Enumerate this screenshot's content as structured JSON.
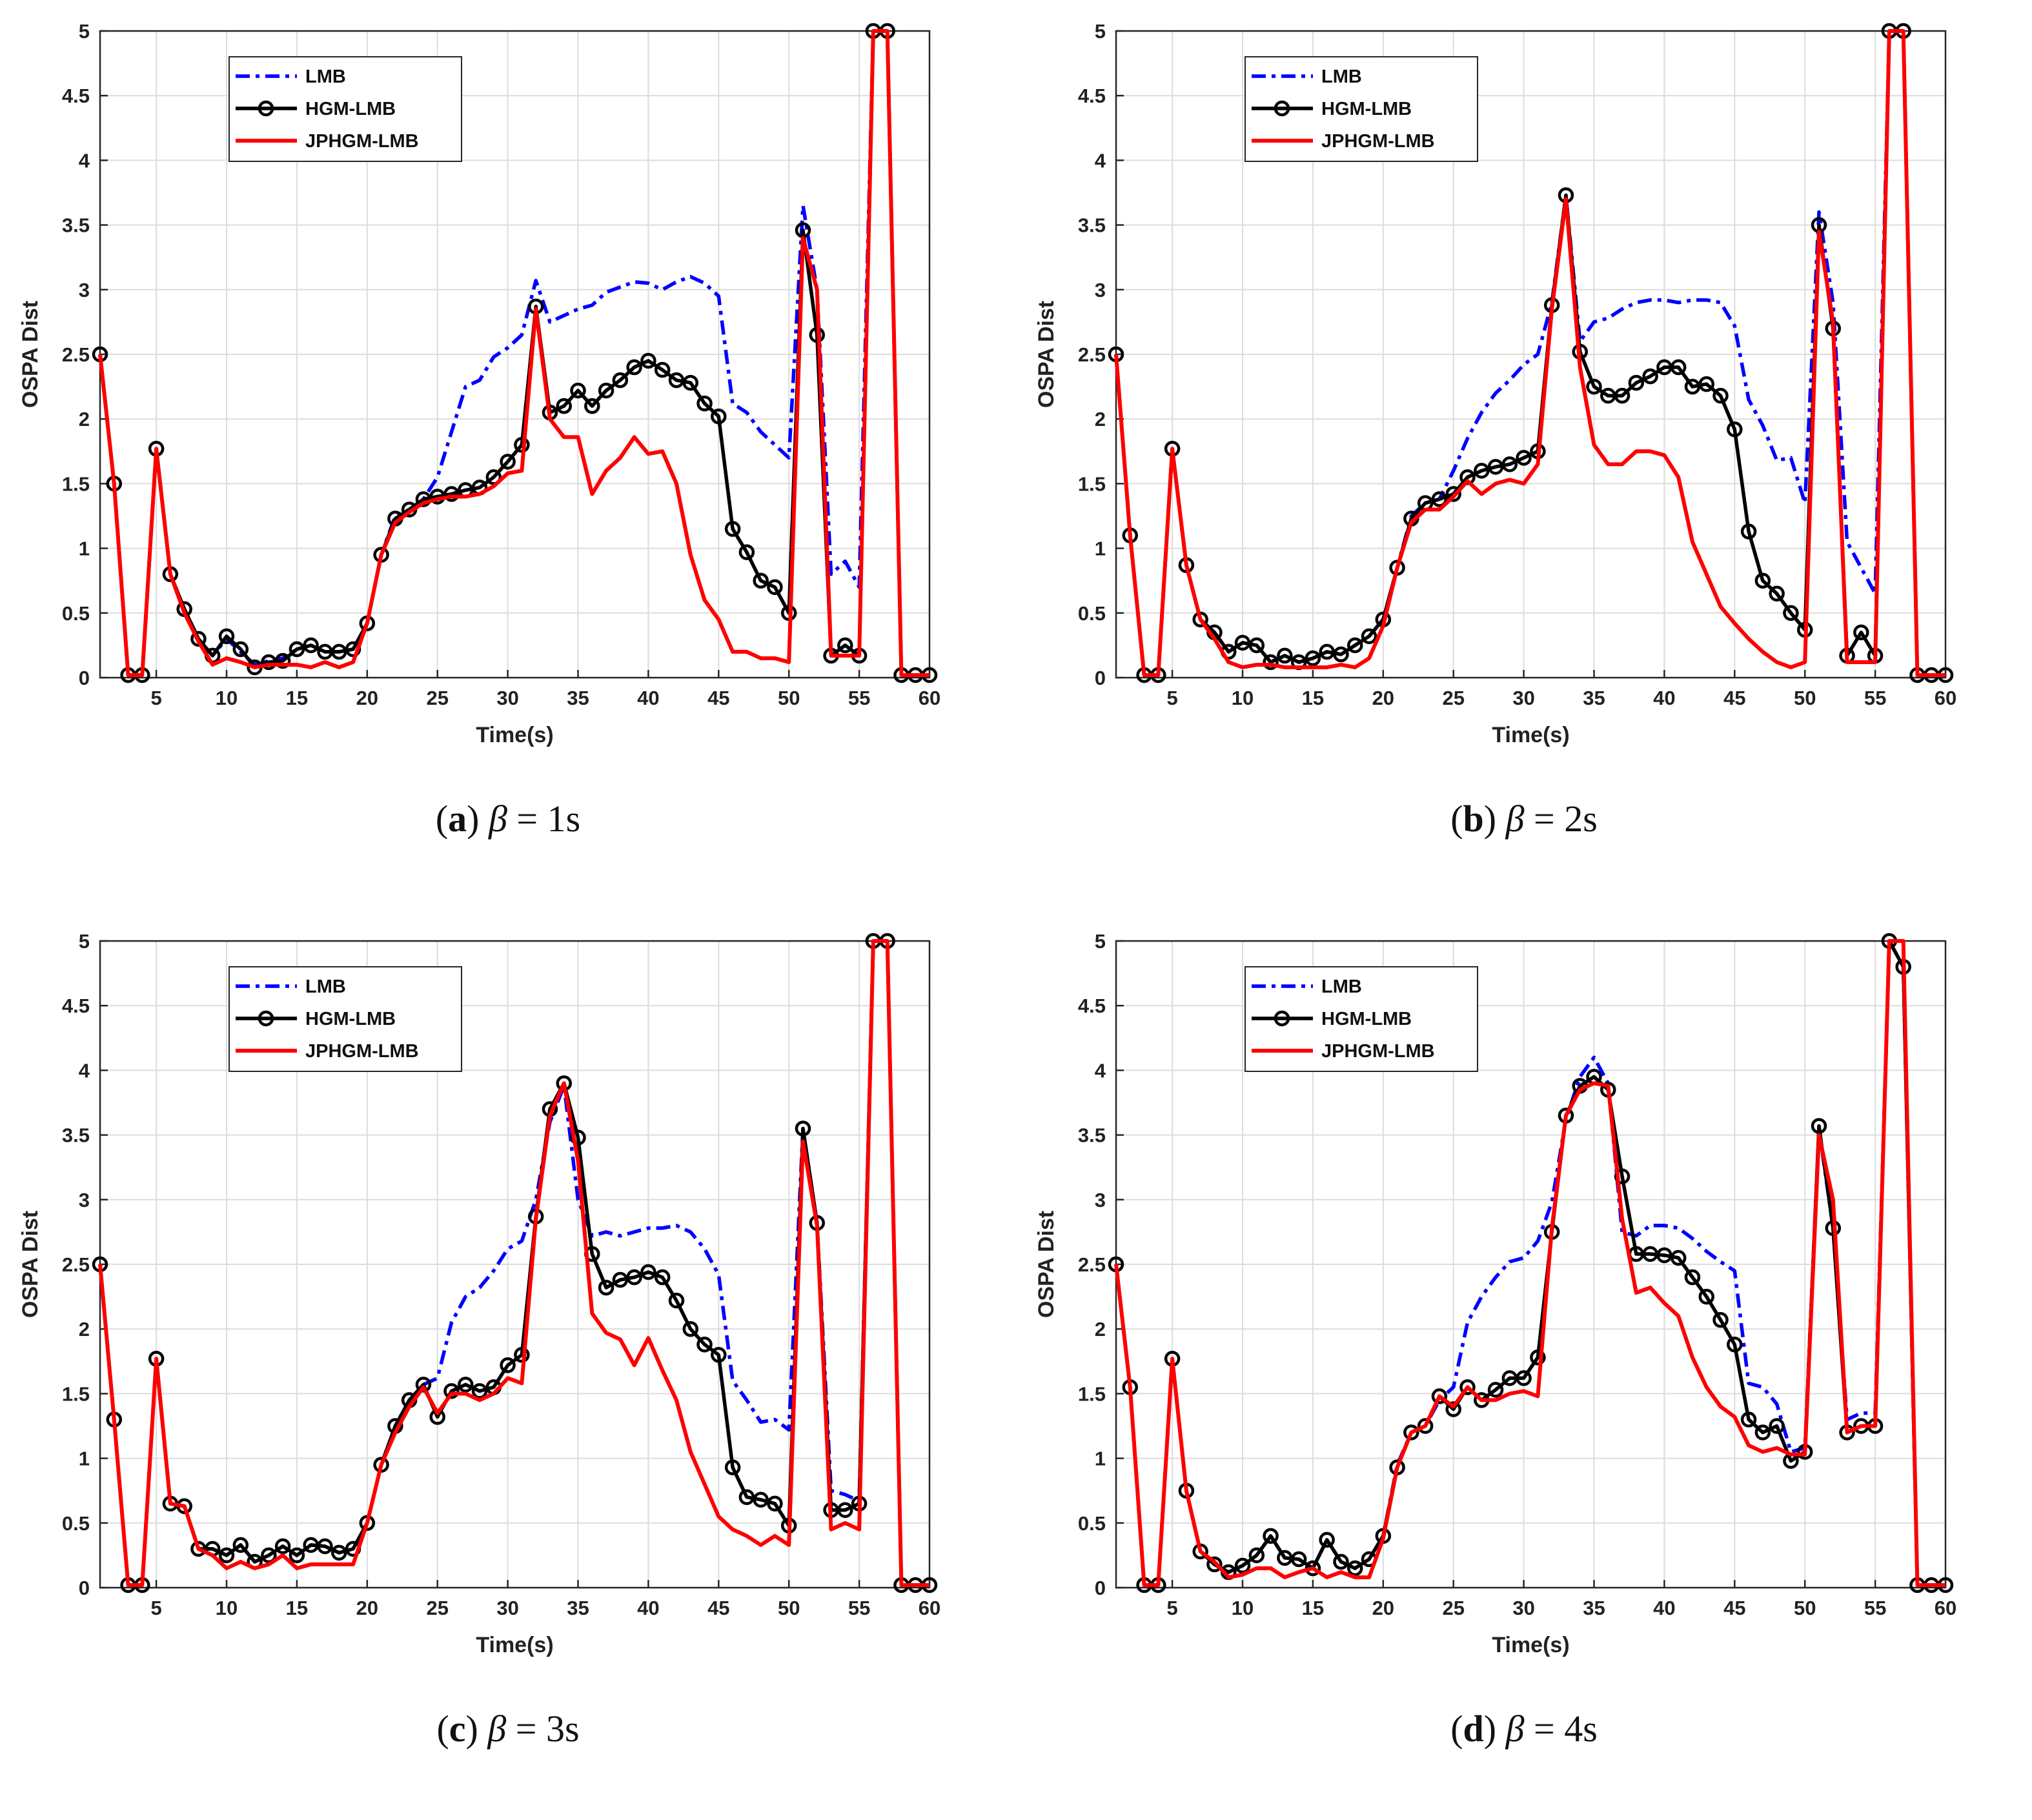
{
  "figure": {
    "legend": {
      "series_names": [
        "LMB",
        "HGM-LMB",
        "JPHGM-LMB"
      ]
    },
    "colors": {
      "LMB": "#0000ff",
      "HGM-LMB": "#000000",
      "JPHGM-LMB": "#ff0000"
    }
  },
  "chart_data": [
    {
      "type": "line",
      "caption": {
        "letter": "a",
        "beta": "β",
        "eq": "=",
        "value": "1s"
      },
      "xlabel": "Time(s)",
      "ylabel": "OSPA Dist",
      "xlim": [
        1,
        60
      ],
      "ylim": [
        0,
        5
      ],
      "xticks": [
        5,
        10,
        15,
        20,
        25,
        30,
        35,
        40,
        45,
        50,
        55,
        60
      ],
      "yticks": [
        0,
        0.5,
        1,
        1.5,
        2,
        2.5,
        3,
        3.5,
        4,
        4.5,
        5
      ],
      "grid": true,
      "legend_position": "top-left",
      "x": [
        1,
        2,
        3,
        4,
        5,
        6,
        7,
        8,
        9,
        10,
        11,
        12,
        13,
        14,
        15,
        16,
        17,
        18,
        19,
        20,
        21,
        22,
        23,
        24,
        25,
        26,
        27,
        28,
        29,
        30,
        31,
        32,
        33,
        34,
        35,
        36,
        37,
        38,
        39,
        40,
        41,
        42,
        43,
        44,
        45,
        46,
        47,
        48,
        49,
        50,
        51,
        52,
        53,
        54,
        55,
        56,
        57,
        58,
        59,
        60
      ],
      "series": [
        {
          "name": "LMB",
          "values": [
            2.5,
            1.5,
            0.02,
            0.02,
            1.77,
            0.8,
            0.53,
            0.3,
            0.17,
            0.3,
            0.2,
            0.1,
            0.13,
            0.15,
            0.22,
            0.25,
            0.2,
            0.2,
            0.22,
            0.42,
            0.95,
            1.25,
            1.3,
            1.38,
            1.55,
            1.9,
            2.25,
            2.3,
            2.48,
            2.55,
            2.65,
            3.07,
            2.75,
            2.8,
            2.85,
            2.88,
            2.98,
            3.02,
            3.06,
            3.05,
            3.0,
            3.06,
            3.1,
            3.05,
            2.95,
            2.12,
            2.05,
            1.9,
            1.8,
            1.7,
            3.65,
            3.0,
            0.8,
            0.9,
            0.7,
            5.0,
            5.0,
            0.02,
            0.02,
            0.02
          ]
        },
        {
          "name": "HGM-LMB",
          "values": [
            2.5,
            1.5,
            0.02,
            0.02,
            1.77,
            0.8,
            0.53,
            0.3,
            0.17,
            0.32,
            0.22,
            0.08,
            0.12,
            0.13,
            0.22,
            0.25,
            0.2,
            0.2,
            0.22,
            0.42,
            0.95,
            1.23,
            1.3,
            1.38,
            1.4,
            1.42,
            1.45,
            1.47,
            1.55,
            1.67,
            1.8,
            2.87,
            2.05,
            2.1,
            2.22,
            2.1,
            2.22,
            2.3,
            2.4,
            2.45,
            2.38,
            2.3,
            2.28,
            2.12,
            2.02,
            1.15,
            0.97,
            0.75,
            0.7,
            0.5,
            3.46,
            2.65,
            0.17,
            0.25,
            0.17,
            5.0,
            5.0,
            0.02,
            0.02,
            0.02
          ]
        },
        {
          "name": "JPHGM-LMB",
          "values": [
            2.5,
            1.5,
            0.02,
            0.02,
            1.77,
            0.8,
            0.5,
            0.28,
            0.1,
            0.15,
            0.12,
            0.08,
            0.1,
            0.1,
            0.1,
            0.08,
            0.12,
            0.08,
            0.12,
            0.42,
            0.95,
            1.2,
            1.28,
            1.35,
            1.38,
            1.4,
            1.4,
            1.42,
            1.48,
            1.58,
            1.6,
            2.85,
            2.0,
            1.86,
            1.86,
            1.42,
            1.6,
            1.7,
            1.86,
            1.73,
            1.75,
            1.5,
            0.95,
            0.6,
            0.45,
            0.2,
            0.2,
            0.15,
            0.15,
            0.12,
            3.4,
            3.0,
            0.17,
            0.17,
            0.17,
            5.0,
            5.0,
            0.02,
            0.02,
            0.02
          ]
        }
      ]
    },
    {
      "type": "line",
      "caption": {
        "letter": "b",
        "beta": "β",
        "eq": "=",
        "value": "2s"
      },
      "xlabel": "Time(s)",
      "ylabel": "OSPA Dist",
      "xlim": [
        1,
        60
      ],
      "ylim": [
        0,
        5
      ],
      "xticks": [
        5,
        10,
        15,
        20,
        25,
        30,
        35,
        40,
        45,
        50,
        55,
        60
      ],
      "yticks": [
        0,
        0.5,
        1,
        1.5,
        2,
        2.5,
        3,
        3.5,
        4,
        4.5,
        5
      ],
      "grid": true,
      "legend_position": "top-left",
      "x": [
        1,
        2,
        3,
        4,
        5,
        6,
        7,
        8,
        9,
        10,
        11,
        12,
        13,
        14,
        15,
        16,
        17,
        18,
        19,
        20,
        21,
        22,
        23,
        24,
        25,
        26,
        27,
        28,
        29,
        30,
        31,
        32,
        33,
        34,
        35,
        36,
        37,
        38,
        39,
        40,
        41,
        42,
        43,
        44,
        45,
        46,
        47,
        48,
        49,
        50,
        51,
        52,
        53,
        54,
        55,
        56,
        57,
        58,
        59,
        60
      ],
      "series": [
        {
          "name": "LMB",
          "values": [
            2.5,
            1.1,
            0.02,
            0.02,
            1.77,
            0.87,
            0.45,
            0.35,
            0.2,
            0.27,
            0.25,
            0.12,
            0.17,
            0.12,
            0.15,
            0.2,
            0.18,
            0.25,
            0.32,
            0.45,
            0.85,
            1.25,
            1.35,
            1.38,
            1.6,
            1.85,
            2.05,
            2.2,
            2.3,
            2.42,
            2.5,
            2.9,
            3.73,
            2.6,
            2.75,
            2.78,
            2.85,
            2.9,
            2.92,
            2.92,
            2.9,
            2.92,
            2.92,
            2.9,
            2.72,
            2.15,
            1.95,
            1.68,
            1.7,
            1.35,
            3.6,
            2.9,
            1.05,
            0.85,
            0.65,
            5.0,
            5.0,
            0.02,
            0.02,
            0.02
          ]
        },
        {
          "name": "HGM-LMB",
          "values": [
            2.5,
            1.1,
            0.02,
            0.02,
            1.77,
            0.87,
            0.45,
            0.35,
            0.2,
            0.27,
            0.25,
            0.12,
            0.17,
            0.12,
            0.15,
            0.2,
            0.18,
            0.25,
            0.32,
            0.45,
            0.85,
            1.23,
            1.35,
            1.38,
            1.42,
            1.55,
            1.6,
            1.63,
            1.65,
            1.7,
            1.75,
            2.88,
            3.73,
            2.52,
            2.25,
            2.18,
            2.18,
            2.28,
            2.33,
            2.4,
            2.4,
            2.25,
            2.27,
            2.18,
            1.92,
            1.13,
            0.75,
            0.65,
            0.5,
            0.37,
            3.5,
            2.7,
            0.17,
            0.35,
            0.17,
            5.0,
            5.0,
            0.02,
            0.02,
            0.02
          ]
        },
        {
          "name": "JPHGM-LMB",
          "values": [
            2.5,
            1.1,
            0.02,
            0.02,
            1.77,
            0.87,
            0.45,
            0.3,
            0.12,
            0.08,
            0.1,
            0.1,
            0.08,
            0.08,
            0.08,
            0.08,
            0.1,
            0.08,
            0.15,
            0.4,
            0.85,
            1.2,
            1.3,
            1.3,
            1.4,
            1.52,
            1.42,
            1.5,
            1.53,
            1.5,
            1.65,
            2.85,
            3.7,
            2.4,
            1.8,
            1.65,
            1.65,
            1.75,
            1.75,
            1.72,
            1.55,
            1.05,
            0.8,
            0.55,
            0.42,
            0.3,
            0.2,
            0.12,
            0.08,
            0.12,
            3.45,
            2.75,
            0.12,
            0.12,
            0.12,
            5.0,
            5.0,
            0.02,
            0.02,
            0.02
          ]
        }
      ]
    },
    {
      "type": "line",
      "caption": {
        "letter": "c",
        "beta": "β",
        "eq": "=",
        "value": "3s"
      },
      "xlabel": "Time(s)",
      "ylabel": "OSPA Dist",
      "xlim": [
        1,
        60
      ],
      "ylim": [
        0,
        5
      ],
      "xticks": [
        5,
        10,
        15,
        20,
        25,
        30,
        35,
        40,
        45,
        50,
        55,
        60
      ],
      "yticks": [
        0,
        0.5,
        1,
        1.5,
        2,
        2.5,
        3,
        3.5,
        4,
        4.5,
        5
      ],
      "grid": true,
      "legend_position": "top-left",
      "x": [
        1,
        2,
        3,
        4,
        5,
        6,
        7,
        8,
        9,
        10,
        11,
        12,
        13,
        14,
        15,
        16,
        17,
        18,
        19,
        20,
        21,
        22,
        23,
        24,
        25,
        26,
        27,
        28,
        29,
        30,
        31,
        32,
        33,
        34,
        35,
        36,
        37,
        38,
        39,
        40,
        41,
        42,
        43,
        44,
        45,
        46,
        47,
        48,
        49,
        50,
        51,
        52,
        53,
        54,
        55,
        56,
        57,
        58,
        59,
        60
      ],
      "series": [
        {
          "name": "LMB",
          "values": [
            2.5,
            1.3,
            0.02,
            0.02,
            1.77,
            0.65,
            0.63,
            0.3,
            0.3,
            0.25,
            0.33,
            0.2,
            0.25,
            0.32,
            0.25,
            0.33,
            0.32,
            0.27,
            0.3,
            0.5,
            0.95,
            1.25,
            1.45,
            1.57,
            1.62,
            2.05,
            2.25,
            2.32,
            2.45,
            2.62,
            2.68,
            3.0,
            3.6,
            3.88,
            3.0,
            2.72,
            2.75,
            2.72,
            2.75,
            2.78,
            2.78,
            2.8,
            2.75,
            2.62,
            2.42,
            1.6,
            1.45,
            1.28,
            1.3,
            1.22,
            3.55,
            2.82,
            0.75,
            0.72,
            0.67,
            5.0,
            5.0,
            0.02,
            0.02,
            0.02
          ]
        },
        {
          "name": "HGM-LMB",
          "values": [
            2.5,
            1.3,
            0.02,
            0.02,
            1.77,
            0.65,
            0.63,
            0.3,
            0.3,
            0.25,
            0.33,
            0.2,
            0.25,
            0.32,
            0.25,
            0.33,
            0.32,
            0.27,
            0.3,
            0.5,
            0.95,
            1.25,
            1.45,
            1.57,
            1.32,
            1.52,
            1.57,
            1.52,
            1.55,
            1.72,
            1.8,
            2.87,
            3.7,
            3.9,
            3.48,
            2.58,
            2.32,
            2.38,
            2.4,
            2.44,
            2.4,
            2.22,
            2.0,
            1.88,
            1.8,
            0.93,
            0.7,
            0.68,
            0.65,
            0.48,
            3.55,
            2.82,
            0.6,
            0.6,
            0.65,
            5.0,
            5.0,
            0.02,
            0.02,
            0.02
          ]
        },
        {
          "name": "JPHGM-LMB",
          "values": [
            2.5,
            1.3,
            0.02,
            0.02,
            1.77,
            0.65,
            0.63,
            0.3,
            0.25,
            0.15,
            0.2,
            0.15,
            0.18,
            0.25,
            0.15,
            0.18,
            0.18,
            0.18,
            0.18,
            0.5,
            0.95,
            1.2,
            1.4,
            1.55,
            1.35,
            1.5,
            1.5,
            1.45,
            1.5,
            1.62,
            1.58,
            2.85,
            3.65,
            3.9,
            3.3,
            2.12,
            1.97,
            1.92,
            1.72,
            1.93,
            1.68,
            1.45,
            1.05,
            0.8,
            0.55,
            0.45,
            0.4,
            0.33,
            0.4,
            0.33,
            3.45,
            2.8,
            0.45,
            0.5,
            0.45,
            5.0,
            5.0,
            0.02,
            0.02,
            0.02
          ]
        }
      ]
    },
    {
      "type": "line",
      "caption": {
        "letter": "d",
        "beta": "β",
        "eq": "=",
        "value": "4s"
      },
      "xlabel": "Time(s)",
      "ylabel": "OSPA Dist",
      "xlim": [
        1,
        60
      ],
      "ylim": [
        0,
        5
      ],
      "xticks": [
        5,
        10,
        15,
        20,
        25,
        30,
        35,
        40,
        45,
        50,
        55,
        60
      ],
      "yticks": [
        0,
        0.5,
        1,
        1.5,
        2,
        2.5,
        3,
        3.5,
        4,
        4.5,
        5
      ],
      "grid": true,
      "legend_position": "top-left",
      "x": [
        1,
        2,
        3,
        4,
        5,
        6,
        7,
        8,
        9,
        10,
        11,
        12,
        13,
        14,
        15,
        16,
        17,
        18,
        19,
        20,
        21,
        22,
        23,
        24,
        25,
        26,
        27,
        28,
        29,
        30,
        31,
        32,
        33,
        34,
        35,
        36,
        37,
        38,
        39,
        40,
        41,
        42,
        43,
        44,
        45,
        46,
        47,
        48,
        49,
        50,
        51,
        52,
        53,
        54,
        55,
        56,
        57,
        58,
        59,
        60
      ],
      "series": [
        {
          "name": "LMB",
          "values": [
            2.5,
            1.55,
            0.02,
            0.02,
            1.77,
            0.75,
            0.28,
            0.18,
            0.12,
            0.17,
            0.25,
            0.4,
            0.23,
            0.22,
            0.15,
            0.37,
            0.2,
            0.15,
            0.22,
            0.4,
            0.95,
            1.2,
            1.25,
            1.45,
            1.55,
            2.05,
            2.25,
            2.4,
            2.52,
            2.55,
            2.68,
            2.98,
            3.62,
            3.95,
            4.1,
            3.9,
            2.75,
            2.72,
            2.8,
            2.8,
            2.78,
            2.7,
            2.6,
            2.52,
            2.45,
            1.58,
            1.55,
            1.42,
            1.05,
            1.08,
            3.55,
            2.78,
            1.3,
            1.35,
            1.35,
            5.0,
            4.8,
            0.02,
            0.02,
            0.02
          ]
        },
        {
          "name": "HGM-LMB",
          "values": [
            2.5,
            1.55,
            0.02,
            0.02,
            1.77,
            0.75,
            0.28,
            0.18,
            0.12,
            0.17,
            0.25,
            0.4,
            0.23,
            0.22,
            0.15,
            0.37,
            0.2,
            0.15,
            0.22,
            0.4,
            0.93,
            1.2,
            1.25,
            1.48,
            1.38,
            1.55,
            1.45,
            1.53,
            1.62,
            1.62,
            1.78,
            2.75,
            3.65,
            3.88,
            3.95,
            3.85,
            3.18,
            2.58,
            2.58,
            2.57,
            2.55,
            2.4,
            2.25,
            2.07,
            1.88,
            1.3,
            1.2,
            1.25,
            0.98,
            1.05,
            3.57,
            2.78,
            1.2,
            1.25,
            1.25,
            5.0,
            4.8,
            0.02,
            0.02,
            0.02
          ]
        },
        {
          "name": "JPHGM-LMB",
          "values": [
            2.5,
            1.55,
            0.02,
            0.02,
            1.77,
            0.75,
            0.28,
            0.2,
            0.08,
            0.1,
            0.15,
            0.15,
            0.08,
            0.12,
            0.15,
            0.08,
            0.12,
            0.08,
            0.08,
            0.38,
            0.93,
            1.2,
            1.25,
            1.48,
            1.4,
            1.55,
            1.45,
            1.45,
            1.5,
            1.52,
            1.48,
            2.78,
            3.65,
            3.85,
            3.9,
            3.88,
            2.85,
            2.28,
            2.32,
            2.2,
            2.1,
            1.78,
            1.55,
            1.4,
            1.32,
            1.1,
            1.05,
            1.08,
            1.03,
            1.03,
            3.5,
            3.0,
            1.2,
            1.25,
            1.25,
            5.0,
            5.0,
            0.02,
            0.02,
            0.02
          ]
        }
      ]
    }
  ]
}
